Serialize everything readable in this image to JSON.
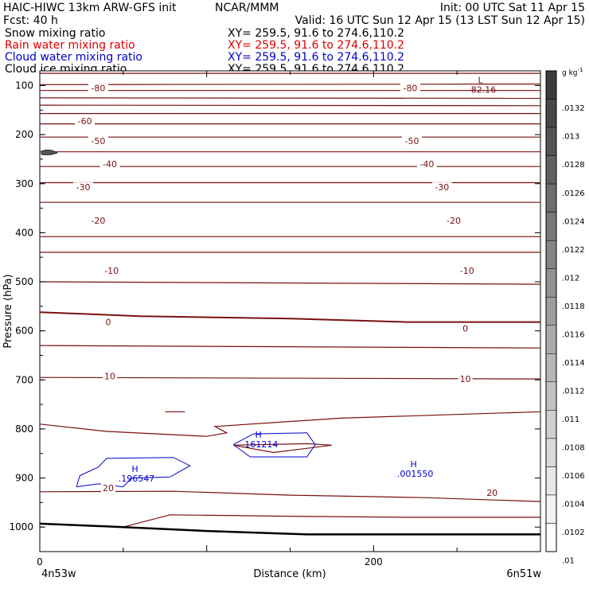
{
  "header": {
    "left_line1": "HAIC-HIWC 13km ARW-GFS init",
    "center_line1": "NCAR/MMM",
    "right_line1": "Init: 00 UTC Sat 11 Apr 15",
    "left_line2": "Fcst:    40 h",
    "right_line2": "Valid: 16 UTC Sun 12 Apr 15 (13 LST Sun 12 Apr 15)"
  },
  "legend": [
    {
      "label": "Snow mixing ratio",
      "xy": "XY=  259.5,  91.6  to  274.6,110.2",
      "color": "#000000"
    },
    {
      "label": "Rain water mixing ratio",
      "xy": "XY=  259.5,  91.6  to  274.6,110.2",
      "color": "#dd0000"
    },
    {
      "label": "Cloud water mixing ratio",
      "xy": "XY=  259.5,  91.6  to  274.6,110.2",
      "color": "#0000cc"
    },
    {
      "label": "Cloud ice mixing ratio",
      "xy": "XY=  259.5,  91.6  to  274.6,110.2",
      "color": "#000000"
    }
  ],
  "colorbar": {
    "unit": "g kg",
    "unit_exp": "-1",
    "labels": [
      ".0132",
      ".013",
      ".0128",
      ".0126",
      ".0124",
      ".0122",
      ".012",
      ".0118",
      ".0116",
      ".0114",
      ".0112",
      ".011",
      ".0108",
      ".0106",
      ".0104",
      ".0102",
      ".01"
    ]
  },
  "colors": {
    "temperature_contour": "#7a1010",
    "cloud_water": "#0000cc",
    "ground": "#000000"
  },
  "chart_data": {
    "type": "line",
    "title": "",
    "xlabel": "Distance (km)",
    "ylabel": "Pressure (hPa)",
    "xlim": [
      0,
      300
    ],
    "ylim": [
      1050,
      70
    ],
    "x_ticks": [
      "0",
      "200"
    ],
    "y_ticks": [
      "100",
      "200",
      "300",
      "400",
      "500",
      "600",
      "700",
      "800",
      "900",
      "1000"
    ],
    "x_endpoint_labels": [
      "4n53w",
      "6n51w"
    ],
    "temperature_contour_labels": [
      {
        "text": "-80",
        "x": 35,
        "p": 105
      },
      {
        "text": "-80",
        "x": 222,
        "p": 105
      },
      {
        "text": "-60",
        "x": 27,
        "p": 172
      },
      {
        "text": "-50",
        "x": 35,
        "p": 213
      },
      {
        "text": "-50",
        "x": 223,
        "p": 213
      },
      {
        "text": "-40",
        "x": 42,
        "p": 260
      },
      {
        "text": "-40",
        "x": 232,
        "p": 260
      },
      {
        "text": "-30",
        "x": 26,
        "p": 307
      },
      {
        "text": "-30",
        "x": 241,
        "p": 307
      },
      {
        "text": "-20",
        "x": 35,
        "p": 375
      },
      {
        "text": "-20",
        "x": 248,
        "p": 375
      },
      {
        "text": "-10",
        "x": 43,
        "p": 477
      },
      {
        "text": "-10",
        "x": 256,
        "p": 477
      },
      {
        "text": "0",
        "x": 41,
        "p": 582
      },
      {
        "text": "0",
        "x": 255,
        "p": 595
      },
      {
        "text": "10",
        "x": 42,
        "p": 692
      },
      {
        "text": "10",
        "x": 255,
        "p": 698
      },
      {
        "text": "20",
        "x": 41,
        "p": 920
      },
      {
        "text": "20",
        "x": 271,
        "p": 930
      }
    ],
    "extrema": [
      {
        "kind": "L",
        "value": "-82.16",
        "x": 264,
        "p": 95,
        "color": "#7a1010"
      },
      {
        "kind": "H",
        "value": ".196547",
        "x": 57,
        "p": 888,
        "color": "#0000cc"
      },
      {
        "kind": "H",
        "value": ".161214",
        "x": 131,
        "p": 818,
        "color": "#0000cc"
      },
      {
        "kind": "H",
        "value": ".001550",
        "x": 224,
        "p": 878,
        "color": "#0000cc"
      }
    ],
    "series": [
      {
        "values": [
          [
            0,
            75
          ],
          [
            300,
            75
          ]
        ]
      },
      {
        "values": [
          [
            0,
            98
          ],
          [
            300,
            97
          ]
        ]
      },
      {
        "values": [
          [
            0,
            110
          ],
          [
            300,
            110
          ]
        ]
      },
      {
        "values": [
          [
            0,
            125
          ],
          [
            300,
            126
          ]
        ]
      },
      {
        "values": [
          [
            0,
            140
          ],
          [
            300,
            141
          ]
        ]
      },
      {
        "values": [
          [
            0,
            157
          ],
          [
            300,
            157
          ]
        ]
      },
      {
        "values": [
          [
            0,
            178
          ],
          [
            300,
            178
          ]
        ]
      },
      {
        "values": [
          [
            0,
            205
          ],
          [
            300,
            205
          ]
        ]
      },
      {
        "values": [
          [
            0,
            235
          ],
          [
            300,
            235
          ]
        ]
      },
      {
        "values": [
          [
            0,
            265
          ],
          [
            300,
            265
          ]
        ]
      },
      {
        "values": [
          [
            0,
            298
          ],
          [
            300,
            298
          ]
        ]
      },
      {
        "values": [
          [
            0,
            338
          ],
          [
            300,
            338
          ]
        ]
      },
      {
        "values": [
          [
            0,
            408
          ],
          [
            300,
            408
          ]
        ]
      },
      {
        "values": [
          [
            0,
            440
          ],
          [
            300,
            440
          ]
        ]
      },
      {
        "values": [
          [
            0,
            500
          ],
          [
            300,
            505
          ]
        ]
      },
      {
        "values": [
          [
            0,
            562
          ],
          [
            60,
            570
          ],
          [
            150,
            575
          ],
          [
            220,
            582
          ],
          [
            300,
            582
          ]
        ]
      },
      {
        "values": [
          [
            0,
            630
          ],
          [
            300,
            635
          ]
        ]
      },
      {
        "values": [
          [
            0,
            695
          ],
          [
            300,
            698
          ]
        ]
      },
      {
        "values": [
          [
            0,
            790
          ],
          [
            40,
            805
          ],
          [
            100,
            815
          ],
          [
            112,
            808
          ],
          [
            105,
            795
          ],
          [
            180,
            778
          ],
          [
            300,
            765
          ]
        ]
      },
      {
        "values": [
          [
            0,
            928
          ],
          [
            80,
            927
          ],
          [
            150,
            935
          ],
          [
            230,
            940
          ],
          [
            300,
            948
          ]
        ]
      },
      {
        "values": [
          [
            50,
            1000
          ],
          [
            78,
            975
          ],
          [
            150,
            978
          ],
          [
            220,
            980
          ],
          [
            300,
            980
          ]
        ]
      },
      {
        "values": [
          [
            75,
            765
          ],
          [
            87,
            765
          ]
        ]
      },
      {
        "values": [
          [
            116,
            833
          ],
          [
            160,
            830
          ],
          [
            175,
            833
          ],
          [
            140,
            848
          ],
          [
            116,
            833
          ]
        ]
      }
    ],
    "cloud_water_contours": [
      {
        "values": [
          [
            22,
            918
          ],
          [
            24,
            895
          ],
          [
            35,
            878
          ],
          [
            40,
            860
          ],
          [
            80,
            858
          ],
          [
            90,
            875
          ],
          [
            78,
            898
          ],
          [
            55,
            900
          ],
          [
            50,
            918
          ],
          [
            35,
            912
          ],
          [
            22,
            918
          ]
        ]
      },
      {
        "values": [
          [
            116,
            832
          ],
          [
            128,
            810
          ],
          [
            160,
            808
          ],
          [
            165,
            832
          ],
          [
            160,
            857
          ],
          [
            126,
            857
          ],
          [
            116,
            832
          ]
        ]
      }
    ],
    "ground": {
      "values": [
        [
          0,
          993
        ],
        [
          50,
          1000
        ],
        [
          100,
          1008
        ],
        [
          160,
          1015
        ],
        [
          230,
          1015
        ],
        [
          300,
          1015
        ]
      ]
    }
  }
}
